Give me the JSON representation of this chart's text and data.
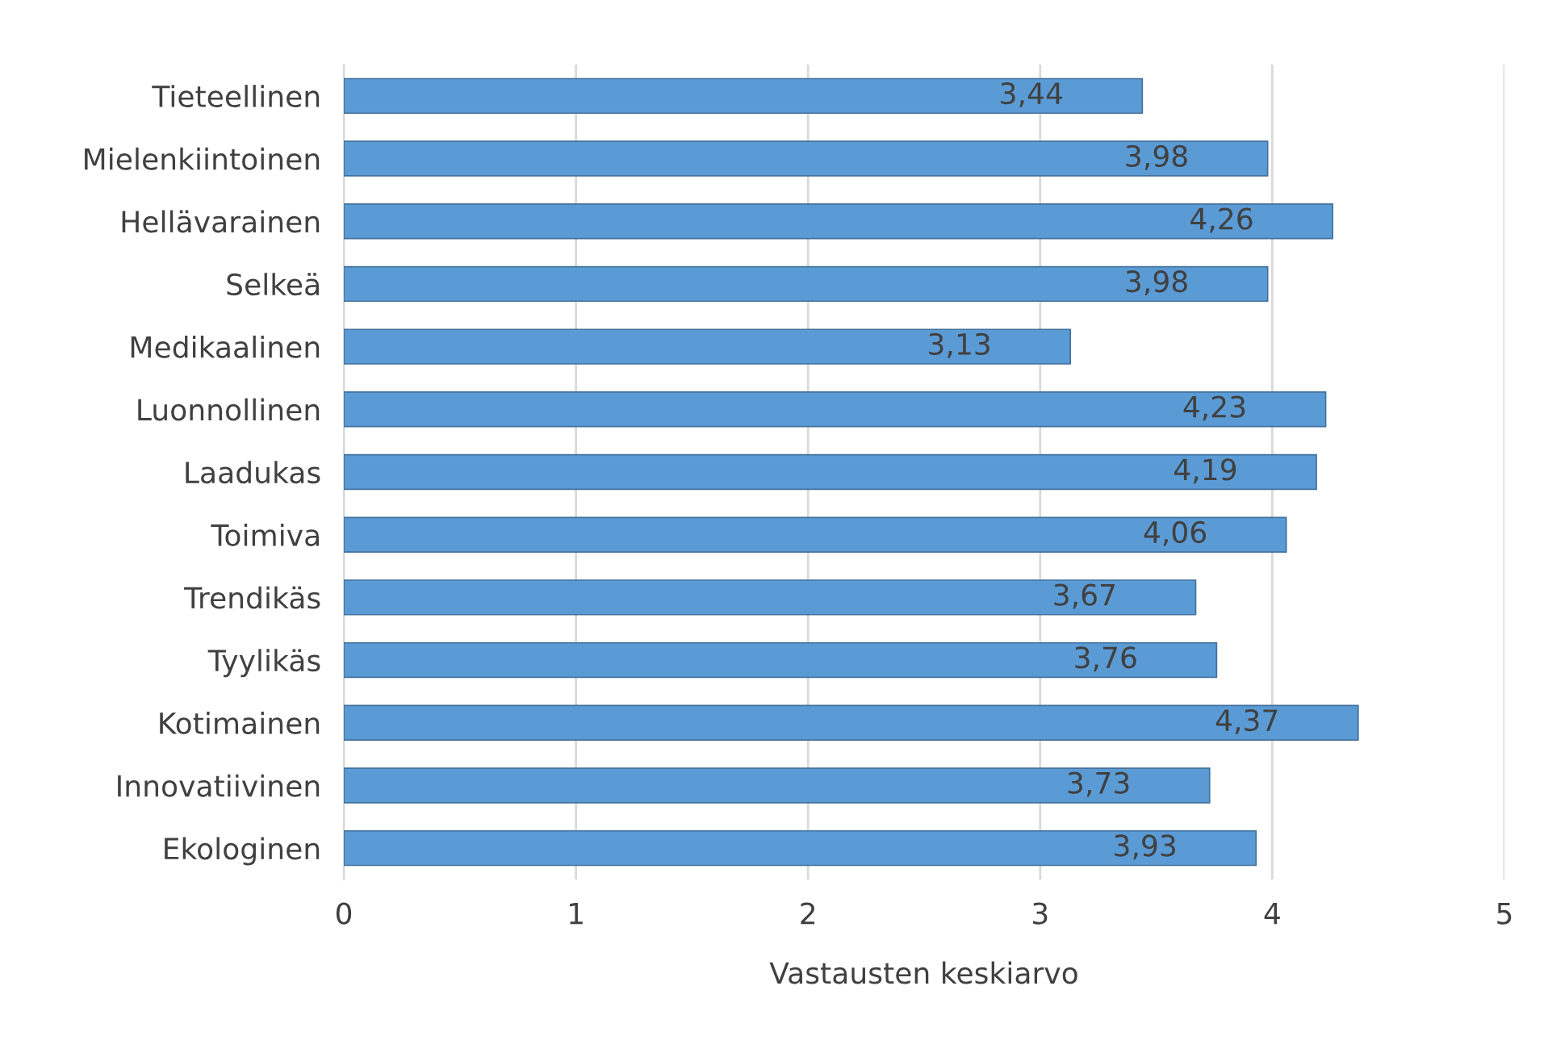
{
  "chart_data": {
    "type": "bar",
    "orientation": "horizontal",
    "xlabel": "Vastausten keskiarvo",
    "categories": [
      "Tieteellinen",
      "Mielenkiintoinen",
      "Hellävarainen",
      "Selkeä",
      "Medikaalinen",
      "Luonnollinen",
      "Laadukas",
      "Toimiva",
      "Trendikäs",
      "Tyylikäs",
      "Kotimainen",
      "Innovatiivinen",
      "Ekologinen"
    ],
    "values": [
      3.44,
      3.98,
      4.26,
      3.98,
      3.13,
      4.23,
      4.19,
      4.06,
      3.67,
      3.76,
      4.37,
      3.73,
      3.93
    ],
    "value_labels": [
      "3,44",
      "3,98",
      "4,26",
      "3,98",
      "3,13",
      "4,23",
      "4,19",
      "4,06",
      "3,67",
      "3,76",
      "4,37",
      "3,73",
      "3,93"
    ],
    "color": "#5b9bd5",
    "xlim": [
      0,
      5
    ],
    "xticks": [
      0,
      1,
      2,
      3,
      4,
      5
    ],
    "grid": "x",
    "legend": false
  }
}
